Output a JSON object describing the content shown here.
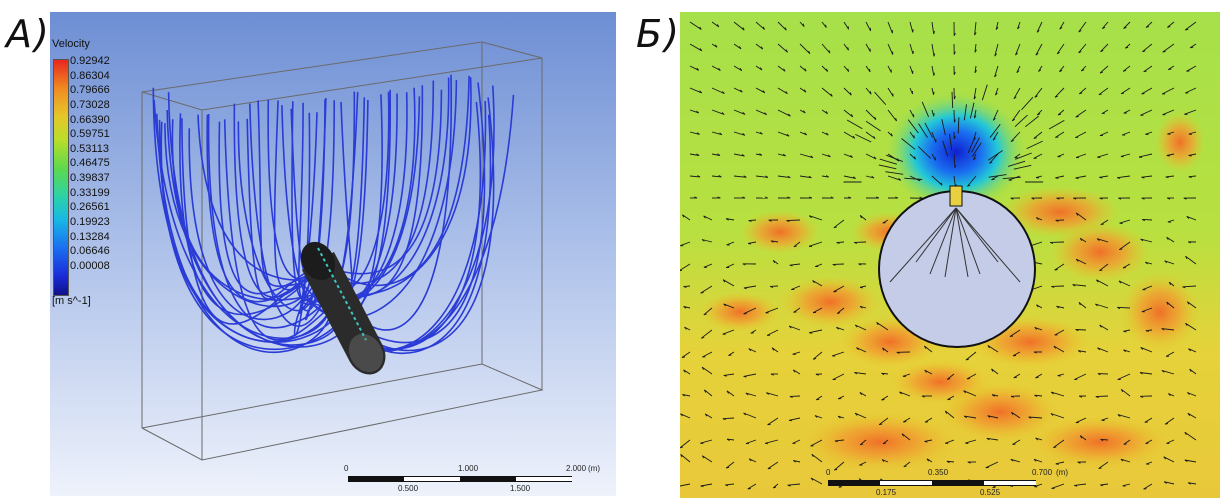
{
  "panel_a": {
    "label": "А)",
    "legend": {
      "title": "Velocity",
      "ticks": [
        "0.92942",
        "0.86304",
        "0.79666",
        "0.73028",
        "0.66390",
        "0.59751",
        "0.53113",
        "0.46475",
        "0.39837",
        "0.33199",
        "0.26561",
        "0.19923",
        "0.13284",
        "0.06646",
        "0.00008"
      ],
      "unit": "[m s^-1]"
    },
    "scale": {
      "top_labels": [
        "0",
        "1.000",
        "2.000"
      ],
      "bottom_labels": [
        "0.500",
        "1.500"
      ],
      "unit": "(m)"
    }
  },
  "panel_b": {
    "label": "Б)",
    "scale": {
      "top_labels": [
        "0",
        "0.350",
        "0.700"
      ],
      "bottom_labels": [
        "0.175",
        "0.525"
      ],
      "unit": "(m)"
    }
  },
  "colors": {
    "streamline": "#2a3bd6",
    "background_top": "#6d8ed4",
    "field_green": "#a6e04a",
    "field_orange": "#f0a030"
  }
}
